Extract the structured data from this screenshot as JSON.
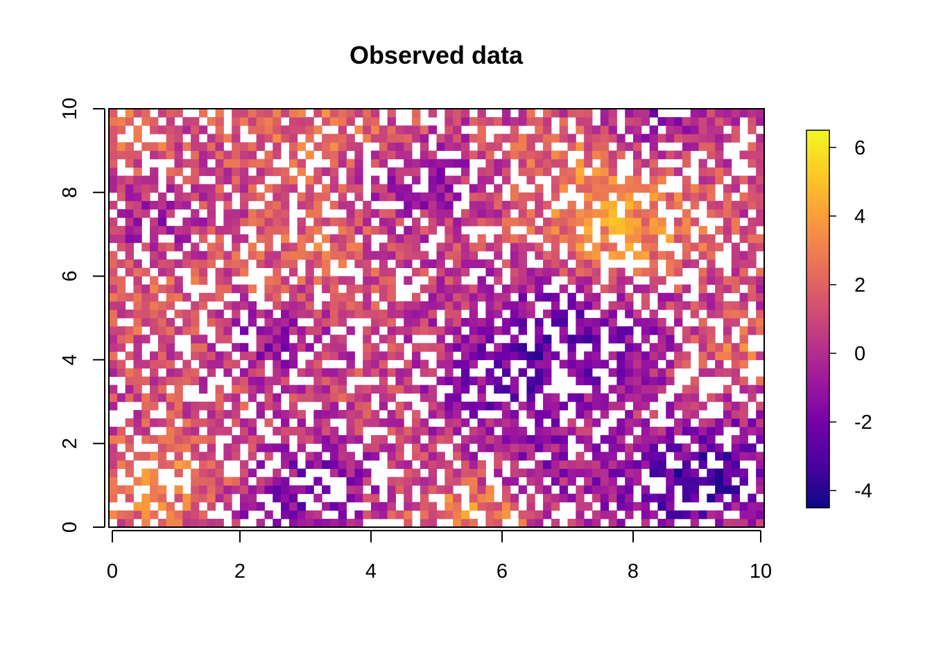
{
  "chart_data": {
    "type": "heatmap",
    "title": "Observed data",
    "xlabel": "",
    "ylabel": "",
    "xlim": [
      0,
      10
    ],
    "ylim": [
      0,
      10
    ],
    "grid": false,
    "x_ticks": [
      "0",
      "2",
      "4",
      "6",
      "8",
      "10"
    ],
    "y_ticks": [
      "0",
      "2",
      "4",
      "6",
      "8",
      "10"
    ],
    "x_tick_values": [
      0,
      2,
      4,
      6,
      8,
      10
    ],
    "y_tick_values": [
      0,
      2,
      4,
      6,
      8,
      10
    ],
    "grid_cells": {
      "nx": 80,
      "ny": 50
    },
    "missing_fraction": 0.3,
    "colorbar": {
      "min": -4.5,
      "max": 6.5,
      "ticks": [
        "-4",
        "-2",
        "0",
        "2",
        "4",
        "6"
      ],
      "tick_values": [
        -4,
        -2,
        0,
        2,
        4,
        6
      ],
      "palette": [
        "#0d0887",
        "#47039f",
        "#7301a8",
        "#9c179e",
        "#bd3786",
        "#d8576b",
        "#ed7953",
        "#fb9f3a",
        "#fdca26",
        "#f0f921"
      ]
    },
    "field_features": [
      {
        "x": 7.8,
        "y": 7.0,
        "r": 0.9,
        "value": 4.2
      },
      {
        "x": 7.0,
        "y": 8.7,
        "r": 0.8,
        "value": 2.8
      },
      {
        "x": 0.8,
        "y": 1.0,
        "r": 0.8,
        "value": 3.6
      },
      {
        "x": 5.6,
        "y": 0.4,
        "r": 0.6,
        "value": 4.0
      },
      {
        "x": 3.4,
        "y": 9.4,
        "r": 1.0,
        "value": 2.8
      },
      {
        "x": 0.2,
        "y": 9.4,
        "r": 0.5,
        "value": 3.5
      },
      {
        "x": 3.1,
        "y": 6.6,
        "r": 0.7,
        "value": 2.4
      },
      {
        "x": 1.0,
        "y": 5.2,
        "r": 1.0,
        "value": 2.0
      },
      {
        "x": 7.0,
        "y": 4.6,
        "r": 1.1,
        "value": -2.8
      },
      {
        "x": 9.4,
        "y": 1.5,
        "r": 0.9,
        "value": -2.6
      },
      {
        "x": 8.6,
        "y": 0.7,
        "r": 0.7,
        "value": -1.8
      },
      {
        "x": 2.4,
        "y": 4.5,
        "r": 0.6,
        "value": -1.8
      },
      {
        "x": 2.6,
        "y": 0.3,
        "r": 0.7,
        "value": -1.6
      },
      {
        "x": 3.2,
        "y": 1.4,
        "r": 0.7,
        "value": -1.2
      },
      {
        "x": 4.8,
        "y": 8.4,
        "r": 0.8,
        "value": -1.4
      },
      {
        "x": 8.2,
        "y": 9.8,
        "r": 0.6,
        "value": -1.4
      },
      {
        "x": 0.6,
        "y": 7.2,
        "r": 0.6,
        "value": -0.8
      },
      {
        "x": 6.0,
        "y": 3.2,
        "r": 0.8,
        "value": -1.2
      },
      {
        "x": 9.6,
        "y": 4.3,
        "r": 0.5,
        "value": 2.8
      },
      {
        "x": 6.6,
        "y": 1.4,
        "r": 0.8,
        "value": -1.0
      }
    ]
  }
}
